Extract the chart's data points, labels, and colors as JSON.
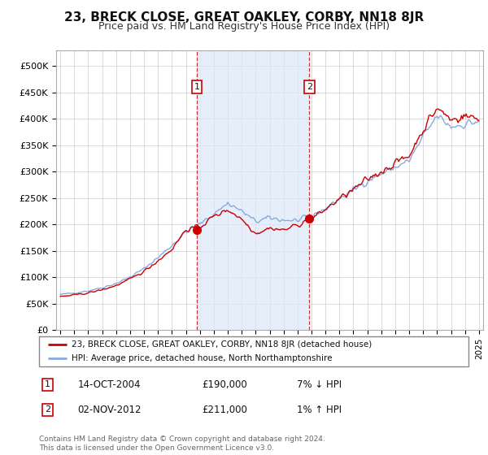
{
  "title": "23, BRECK CLOSE, GREAT OAKLEY, CORBY, NN18 8JR",
  "subtitle": "Price paid vs. HM Land Registry's House Price Index (HPI)",
  "background_color": "#ffffff",
  "plot_bg_color": "#ffffff",
  "grid_color": "#cccccc",
  "title_fontsize": 11,
  "subtitle_fontsize": 9,
  "annotation1": {
    "x_year": 2004.79,
    "label": "1",
    "price_val": 190000,
    "date": "14-OCT-2004",
    "price": "£190,000",
    "pct": "7% ↓ HPI"
  },
  "annotation2": {
    "x_year": 2012.84,
    "label": "2",
    "price_val": 211000,
    "date": "02-NOV-2012",
    "price": "£211,000",
    "pct": "1% ↑ HPI"
  },
  "legend_line1": "23, BRECK CLOSE, GREAT OAKLEY, CORBY, NN18 8JR (detached house)",
  "legend_line2": "HPI: Average price, detached house, North Northamptonshire",
  "footer": "Contains HM Land Registry data © Crown copyright and database right 2024.\nThis data is licensed under the Open Government Licence v3.0.",
  "line_color_property": "#cc0000",
  "line_color_hpi": "#88aadd",
  "ylim": [
    0,
    530000
  ],
  "yticks": [
    0,
    50000,
    100000,
    150000,
    200000,
    250000,
    300000,
    350000,
    400000,
    450000,
    500000
  ],
  "ytick_labels": [
    "£0",
    "£50K",
    "£100K",
    "£150K",
    "£200K",
    "£250K",
    "£300K",
    "£350K",
    "£400K",
    "£450K",
    "£500K"
  ],
  "xtick_years": [
    1995,
    1996,
    1997,
    1998,
    1999,
    2000,
    2001,
    2002,
    2003,
    2004,
    2005,
    2006,
    2007,
    2008,
    2009,
    2010,
    2011,
    2012,
    2013,
    2014,
    2015,
    2016,
    2017,
    2018,
    2019,
    2020,
    2021,
    2022,
    2023,
    2024,
    2025
  ],
  "xlim": [
    1994.7,
    2025.3
  ],
  "highlight_color": "#dce8f8",
  "highlight_alpha": 0.7
}
